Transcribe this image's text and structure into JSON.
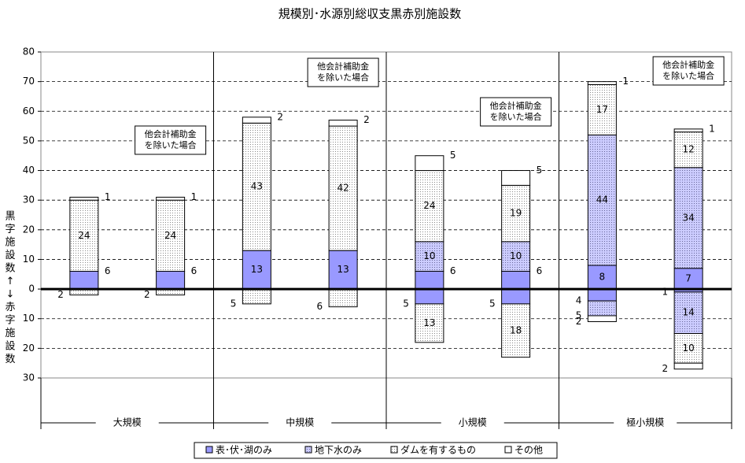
{
  "chart_data": {
    "type": "bar",
    "stacked": true,
    "title": "規模別･水源別総収支黒赤別施設数",
    "y_label": "黒字施設数↑↓赤字施設数",
    "categories": [
      null,
      null,
      null,
      null,
      null,
      null,
      null,
      null
    ],
    "groups": [
      "大規模",
      "中規模",
      "小規模",
      "極小規模"
    ],
    "annotations": [
      {
        "bar": 1,
        "lines": [
          "他会計補助金",
          "を除いた場合"
        ]
      },
      {
        "bar": 3,
        "lines": [
          "他会計補助金",
          "を除いた場合"
        ]
      },
      {
        "bar": 5,
        "lines": [
          "他会計補助金",
          "を除いた場合"
        ]
      },
      {
        "bar": 7,
        "lines": [
          "他会計補助金",
          "を除いた場合"
        ]
      }
    ],
    "ylim": [
      -30,
      80
    ],
    "yticks": [
      {
        "value": -30,
        "label": "30"
      },
      {
        "value": -20,
        "label": "20"
      },
      {
        "value": -10,
        "label": "10"
      },
      0,
      10,
      20,
      30,
      40,
      50,
      60,
      70,
      80
    ],
    "grid": true,
    "series": [
      {
        "name": "表･伏･湖のみ",
        "color": "#9999ff",
        "pattern": "solid",
        "values": [
          6,
          6,
          13,
          13,
          6,
          6,
          8,
          7
        ],
        "deficit_values": [
          null,
          null,
          null,
          null,
          -5,
          -5,
          -4,
          -1
        ],
        "deficit_value_labels": [
          null,
          null,
          null,
          null,
          "5",
          "5",
          "4",
          "1"
        ]
      },
      {
        "name": "地下水のみ",
        "color": "#ccccff",
        "pattern": "dots",
        "values": [
          null,
          null,
          null,
          null,
          10,
          10,
          44,
          34
        ],
        "deficit_values": [
          null,
          null,
          null,
          null,
          null,
          null,
          -5,
          -14
        ],
        "deficit_value_labels": [
          null,
          null,
          null,
          null,
          null,
          null,
          "5",
          "14"
        ]
      },
      {
        "name": "ダムを有するもの",
        "color": "#ffffff",
        "pattern": "dots",
        "values": [
          24,
          24,
          43,
          42,
          24,
          19,
          17,
          12
        ],
        "deficit_values": [
          -2,
          -2,
          -5,
          -6,
          -13,
          -18,
          null,
          -10
        ],
        "deficit_value_labels": [
          "2",
          "2",
          "5",
          "6",
          "13",
          "18",
          null,
          "10"
        ]
      },
      {
        "name": "その他",
        "color": "#ffffff",
        "pattern": "solid",
        "values": [
          1,
          1,
          2,
          2,
          5,
          5,
          1,
          1
        ],
        "deficit_values": [
          null,
          null,
          null,
          null,
          null,
          null,
          -2,
          -2
        ],
        "deficit_value_labels": [
          null,
          null,
          null,
          null,
          null,
          null,
          "2",
          "2"
        ]
      }
    ]
  }
}
